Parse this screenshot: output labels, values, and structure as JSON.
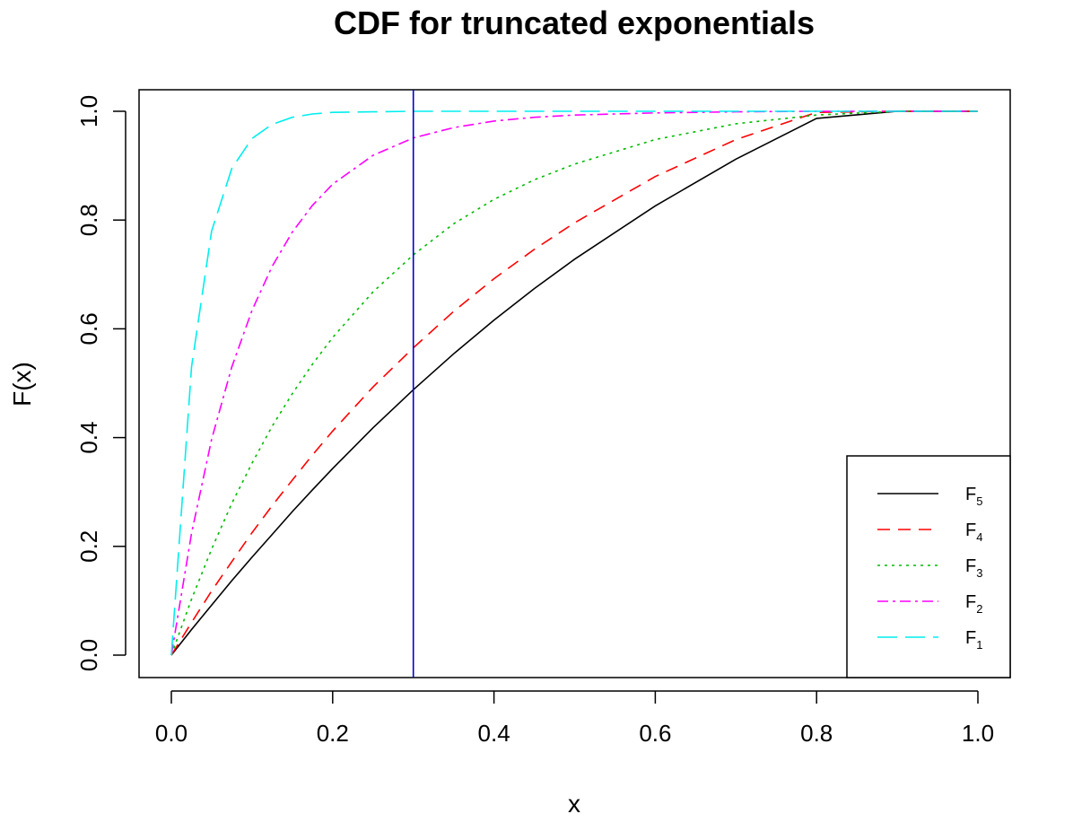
{
  "chart_data": {
    "type": "line",
    "title": "CDF for truncated exponentials",
    "xlabel": "x",
    "ylabel": "F(x)",
    "xlim": [
      0,
      1
    ],
    "ylim": [
      0,
      1
    ],
    "x_ticks": [
      "0.0",
      "0.2",
      "0.4",
      "0.6",
      "0.8",
      "1.0"
    ],
    "y_ticks": [
      "0.0",
      "0.2",
      "0.4",
      "0.6",
      "0.8",
      "1.0"
    ],
    "grid": false,
    "legend_position": "bottom-right",
    "vline": {
      "x": 0.3,
      "color": "#0000cc"
    },
    "x": [
      0,
      0.025,
      0.05,
      0.075,
      0.1,
      0.125,
      0.15,
      0.175,
      0.2,
      0.25,
      0.3,
      0.35,
      0.4,
      0.45,
      0.5,
      0.6,
      0.7,
      0.8,
      0.9,
      1.0
    ],
    "series": [
      {
        "name": "F",
        "sub": "5",
        "color": "#000000",
        "dash": "",
        "values": [
          0,
          0.047,
          0.092,
          0.137,
          0.18,
          0.222,
          0.264,
          0.304,
          0.343,
          0.418,
          0.488,
          0.554,
          0.616,
          0.674,
          0.728,
          0.826,
          0.912,
          0.987,
          1.0,
          1.0
        ]
      },
      {
        "name": "F",
        "sub": "4",
        "color": "#ff0000",
        "dash": "14,9",
        "values": [
          0,
          0.06,
          0.118,
          0.172,
          0.225,
          0.275,
          0.322,
          0.368,
          0.412,
          0.493,
          0.565,
          0.632,
          0.692,
          0.746,
          0.795,
          0.88,
          0.948,
          0.998,
          1.0,
          1.0
        ]
      },
      {
        "name": "F",
        "sub": "3",
        "color": "#00bb00",
        "dash": "3,5",
        "values": [
          0,
          0.103,
          0.195,
          0.279,
          0.353,
          0.421,
          0.481,
          0.535,
          0.584,
          0.668,
          0.736,
          0.793,
          0.838,
          0.874,
          0.903,
          0.948,
          0.977,
          0.993,
          1.0,
          1.0
        ]
      },
      {
        "name": "F",
        "sub": "2",
        "color": "#ff00ff",
        "dash": "12,5,3,5",
        "values": [
          0,
          0.224,
          0.397,
          0.53,
          0.634,
          0.715,
          0.778,
          0.827,
          0.866,
          0.919,
          0.951,
          0.97,
          0.982,
          0.989,
          0.993,
          0.997,
          0.999,
          1.0,
          1.0,
          1.0
        ]
      },
      {
        "name": "F",
        "sub": "1",
        "color": "#00eeee",
        "dash": "22,9",
        "values": [
          0,
          0.53,
          0.78,
          0.895,
          0.95,
          0.976,
          0.989,
          0.995,
          0.998,
          0.999,
          1.0,
          1.0,
          1.0,
          1.0,
          1.0,
          1.0,
          1.0,
          1.0,
          1.0,
          1.0
        ]
      }
    ]
  }
}
